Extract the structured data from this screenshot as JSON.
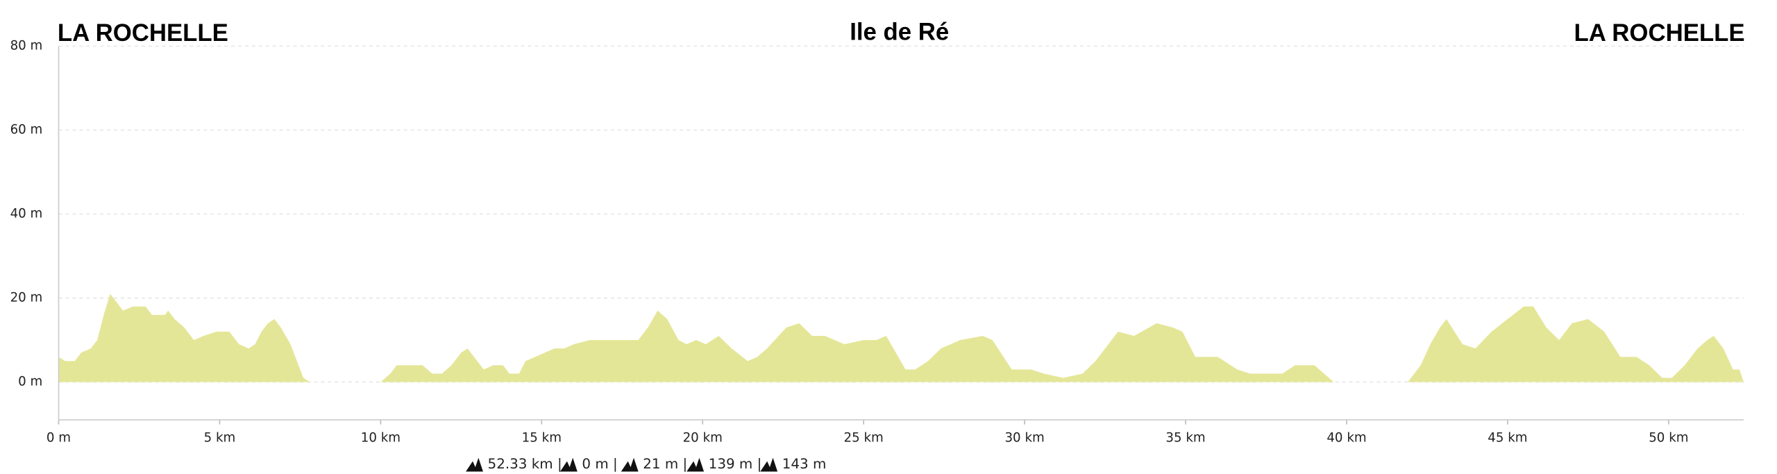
{
  "chart_data": {
    "type": "area",
    "title": "Ile de Ré",
    "start_label": "LA ROCHELLE",
    "end_label": "LA ROCHELLE",
    "color": "#e4e697",
    "grid": true,
    "xlim": [
      0,
      52.33
    ],
    "ylim": [
      -9,
      80
    ],
    "xticks": [
      {
        "value": 0,
        "label": "0 m"
      },
      {
        "value": 5,
        "label": "5 km"
      },
      {
        "value": 10,
        "label": "10 km"
      },
      {
        "value": 15,
        "label": "15 km"
      },
      {
        "value": 20,
        "label": "20 km"
      },
      {
        "value": 25,
        "label": "25 km"
      },
      {
        "value": 30,
        "label": "30 km"
      },
      {
        "value": 35,
        "label": "35 km"
      },
      {
        "value": 40,
        "label": "40 km"
      },
      {
        "value": 45,
        "label": "45 km"
      },
      {
        "value": 50,
        "label": "50 km"
      }
    ],
    "yticks": [
      {
        "value": 0,
        "label": "0 m"
      },
      {
        "value": 20,
        "label": "20 m"
      },
      {
        "value": 40,
        "label": "40 m"
      },
      {
        "value": 60,
        "label": "60 m"
      },
      {
        "value": 80,
        "label": "80 m"
      }
    ],
    "x": [
      0,
      0.2,
      0.5,
      0.7,
      1.0,
      1.2,
      1.4,
      1.6,
      1.8,
      2.0,
      2.3,
      2.7,
      2.9,
      3.3,
      3.4,
      3.6,
      3.9,
      4.2,
      4.5,
      4.9,
      5.3,
      5.6,
      5.9,
      6.1,
      6.3,
      6.5,
      6.7,
      6.9,
      7.2,
      7.4,
      7.6,
      7.8,
      10.0,
      10.3,
      10.5,
      11.3,
      11.6,
      11.9,
      12.2,
      12.5,
      12.7,
      12.9,
      13.2,
      13.5,
      13.8,
      14.0,
      14.3,
      14.5,
      14.8,
      15.1,
      15.4,
      15.7,
      16.0,
      16.5,
      18.0,
      18.3,
      18.6,
      18.9,
      19.25,
      19.5,
      19.8,
      20.1,
      20.5,
      20.9,
      21.4,
      21.7,
      22.0,
      22.6,
      23.0,
      23.4,
      23.8,
      24.4,
      25.0,
      25.4,
      25.7,
      26.0,
      26.3,
      26.6,
      27.0,
      27.4,
      28.0,
      28.7,
      29.0,
      29.6,
      30.2,
      30.6,
      31.2,
      31.8,
      32.2,
      32.5,
      32.9,
      33.4,
      34.1,
      34.6,
      34.9,
      35.3,
      36.0,
      36.6,
      37.0,
      38.0,
      38.4,
      39.0,
      39.6,
      41.9,
      42.3,
      42.6,
      42.9,
      43.1,
      43.6,
      44.0,
      44.5,
      45.0,
      45.5,
      45.8,
      46.2,
      46.6,
      47.0,
      47.5,
      48.0,
      48.5,
      49.0,
      49.4,
      49.8,
      50.1,
      50.5,
      50.9,
      51.2,
      51.4,
      51.7,
      52.0,
      52.2,
      52.33
    ],
    "values": [
      6,
      5,
      5,
      7,
      8,
      10,
      16,
      21,
      19,
      17,
      18,
      18,
      16,
      16,
      17,
      15,
      13,
      10,
      11,
      12,
      12,
      9,
      8,
      9,
      12,
      14,
      15,
      13,
      9,
      5,
      1,
      0,
      0,
      2,
      4,
      4,
      2,
      2,
      4,
      7,
      8,
      6,
      3,
      4,
      4,
      2,
      2,
      5,
      6,
      7,
      8,
      8,
      9,
      10,
      10,
      13,
      17,
      15,
      10,
      9,
      10,
      9,
      11,
      8,
      5,
      6,
      8,
      13,
      14,
      11,
      11,
      9,
      10,
      10,
      11,
      7,
      3,
      3,
      5,
      8,
      10,
      11,
      10,
      3,
      3,
      2,
      1,
      2,
      5,
      8,
      12,
      11,
      14,
      13,
      12,
      6,
      6,
      3,
      2,
      2,
      4,
      4,
      0,
      0,
      4,
      9,
      13,
      15,
      9,
      8,
      12,
      15,
      18,
      18,
      13,
      10,
      14,
      15,
      12,
      6,
      6,
      4,
      1,
      1,
      4,
      8,
      10,
      11,
      8,
      3,
      3,
      0
    ],
    "stats": [
      "52.33 km |",
      "0 m |",
      "21 m |",
      "139 m |",
      "143 m"
    ]
  }
}
